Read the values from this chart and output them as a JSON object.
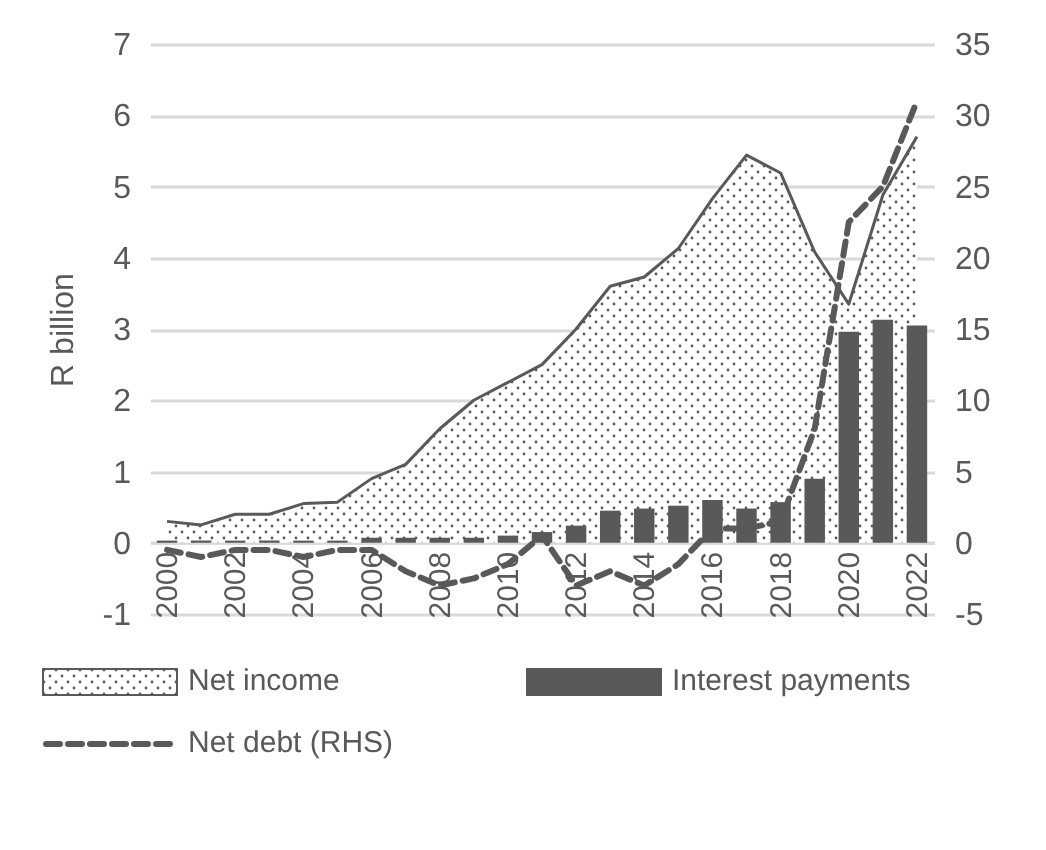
{
  "chart_data": {
    "type": "bar",
    "ylabel": "R billion",
    "categories": [
      "2000",
      null,
      "2002",
      null,
      "2004",
      null,
      "2006",
      null,
      "2008",
      null,
      "2010",
      null,
      "2012",
      null,
      "2014",
      null,
      "2016",
      null,
      "2018",
      null,
      "2020",
      null,
      "2022"
    ],
    "series": [
      {
        "name": "Net income",
        "type": "area",
        "color": "#595959",
        "values": [
          0.3,
          0.25,
          0.4,
          0.4,
          0.55,
          0.57,
          0.9,
          1.1,
          1.6,
          2.0,
          2.25,
          2.5,
          3.0,
          3.6,
          3.73,
          4.13,
          4.83,
          5.44,
          5.19,
          4.08,
          3.35,
          4.88,
          5.7
        ]
      },
      {
        "name": "Interest payments",
        "color": "#595959",
        "values": [
          0.03,
          0.03,
          0.03,
          0.03,
          0.03,
          0.03,
          0.07,
          0.07,
          0.07,
          0.07,
          0.1,
          0.15,
          0.24,
          0.45,
          0.48,
          0.52,
          0.6,
          0.48,
          0.57,
          0.9,
          2.96,
          3.13,
          3.05
        ]
      },
      {
        "name": "Net debt (RHS)",
        "type": "line",
        "axis": "y2",
        "line_style": "dashed",
        "color": "#595959",
        "values": [
          -0.5,
          -1.0,
          -0.5,
          -0.5,
          -1.0,
          -0.5,
          -0.5,
          -2.0,
          -3.0,
          -2.5,
          -1.5,
          0.5,
          -3.0,
          -2.0,
          -3.0,
          -1.5,
          1.0,
          1.0,
          1.5,
          8.0,
          22.5,
          25.0,
          31.0
        ]
      }
    ],
    "ylim": [
      -1,
      7
    ],
    "yticks": [
      -1,
      0,
      1,
      2,
      3,
      4,
      5,
      6,
      7
    ],
    "y2lim": [
      -5,
      35
    ],
    "y2ticks": [
      -5,
      0,
      5,
      10,
      15,
      20,
      25,
      30,
      35
    ],
    "grid": "y",
    "legend": "bottom"
  }
}
